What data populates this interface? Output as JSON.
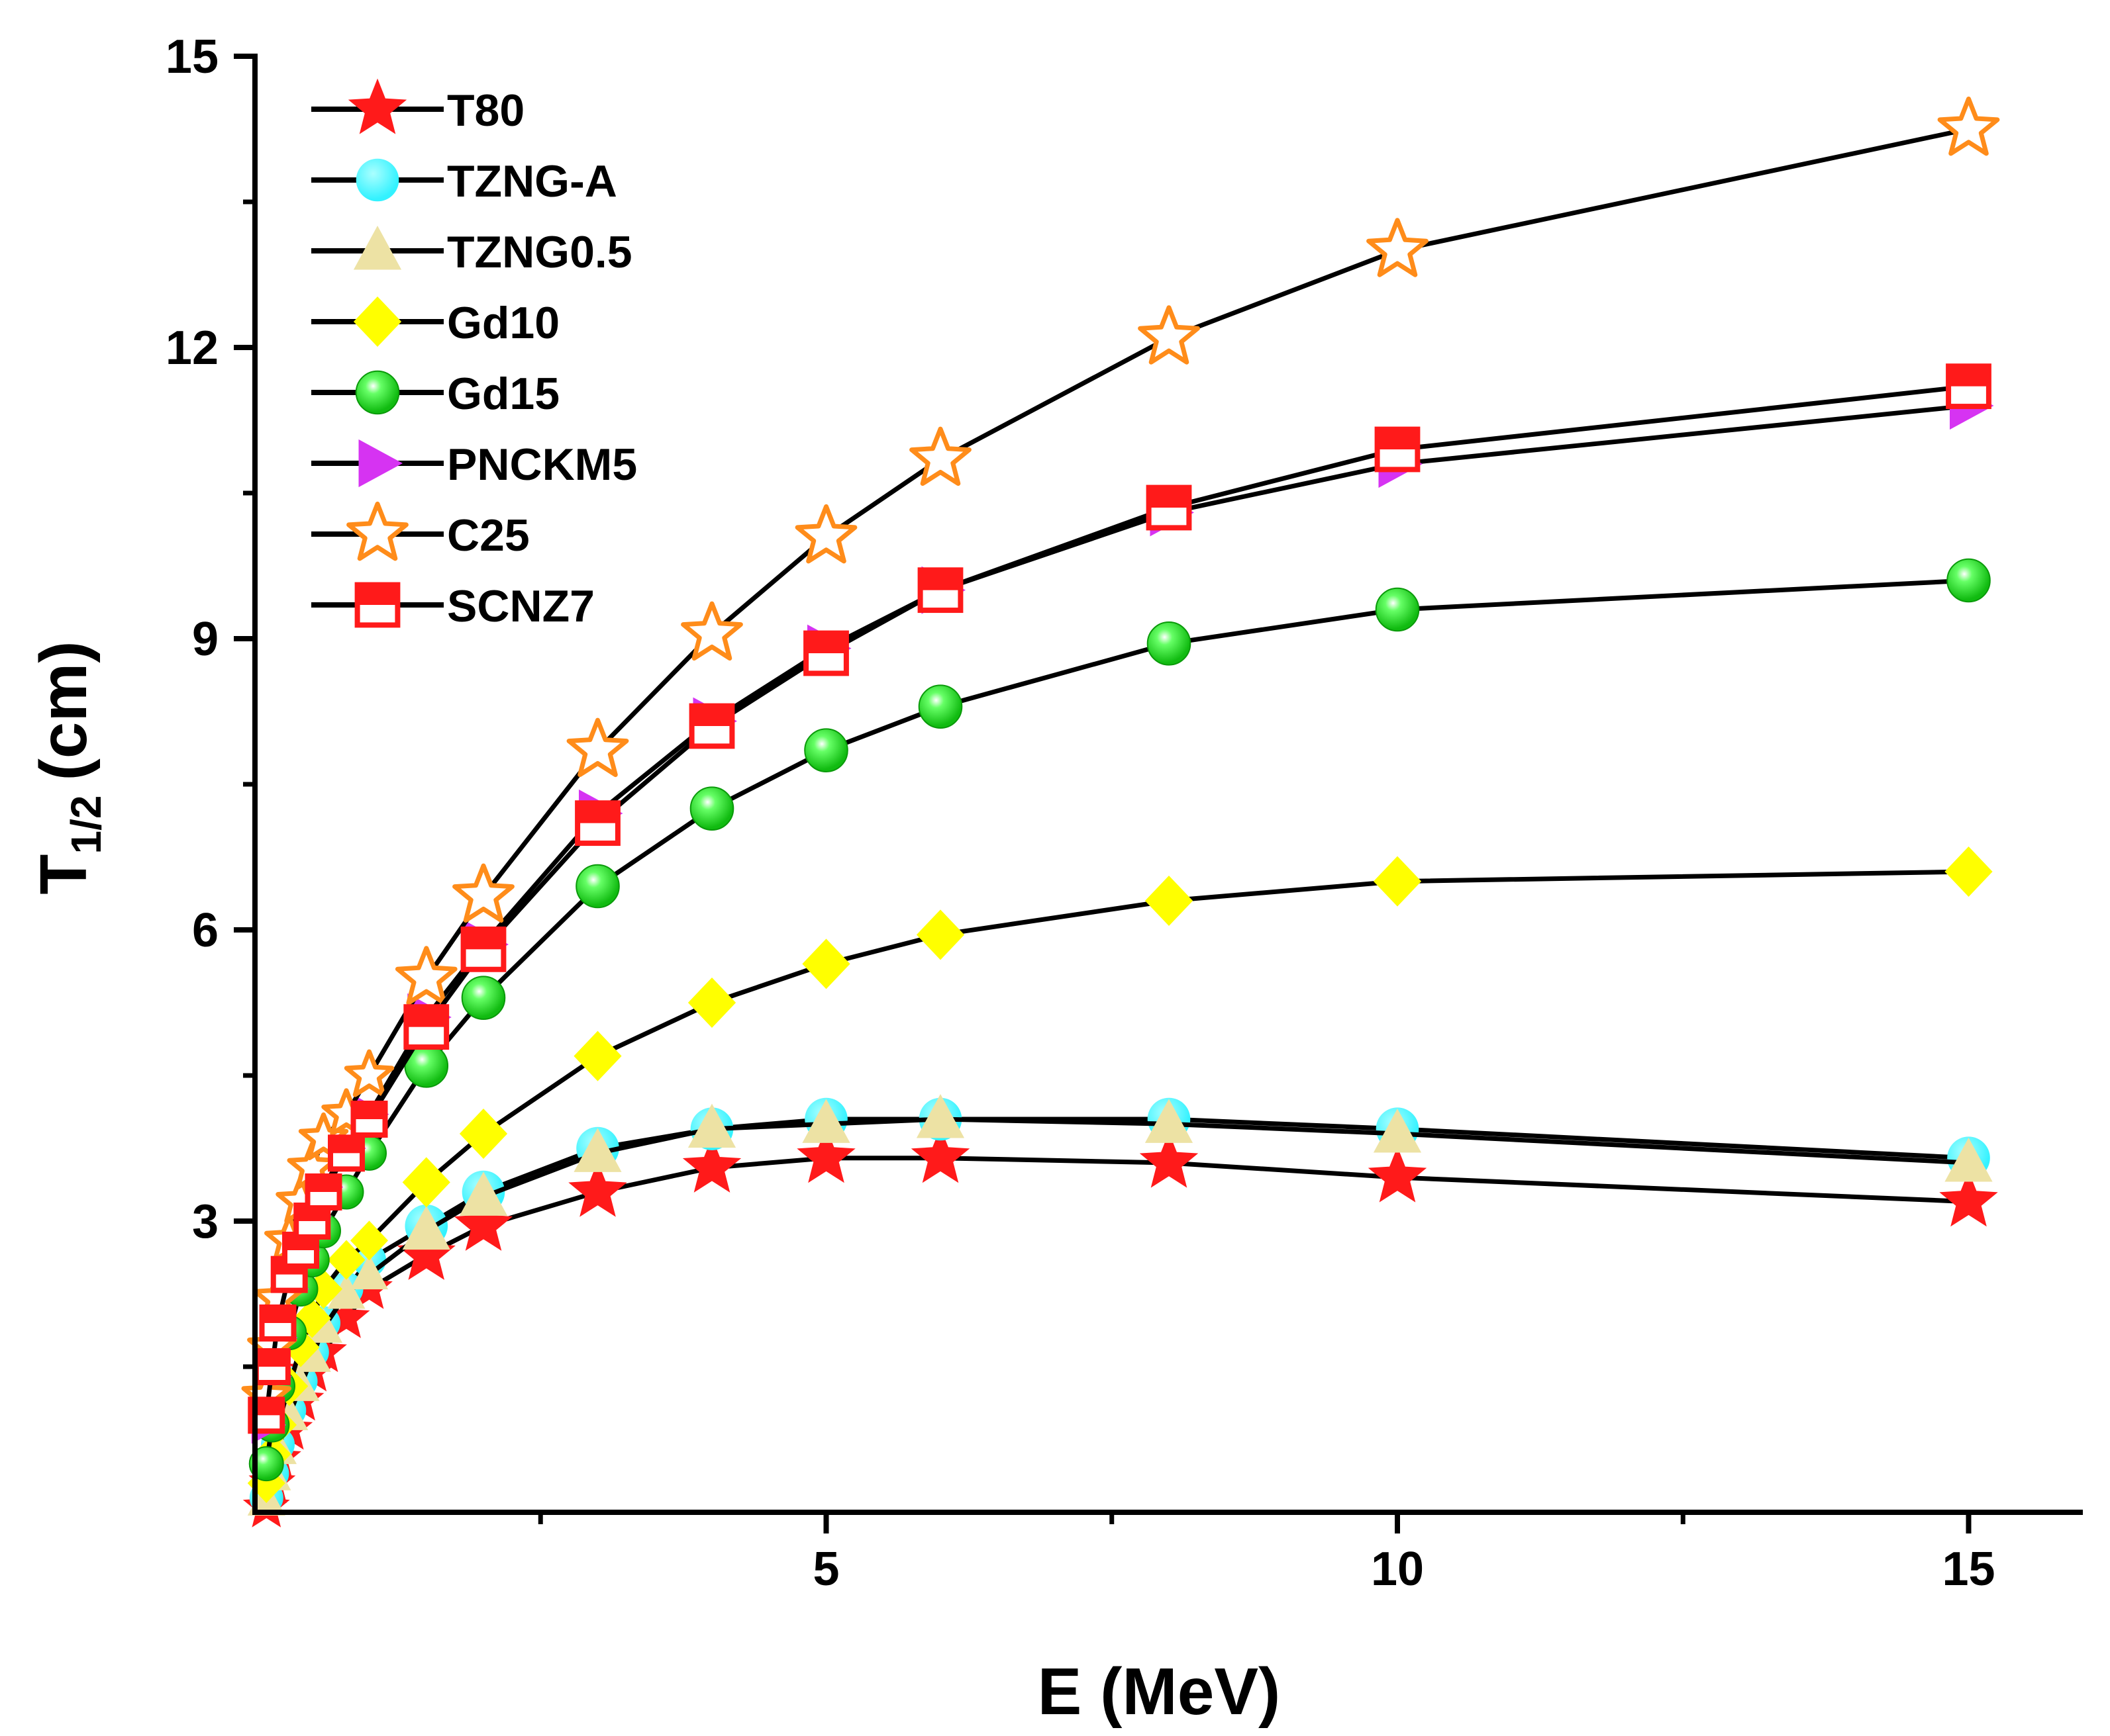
{
  "chart_data": {
    "type": "line",
    "title": "",
    "xlabel": "E (MeV)",
    "ylabel_main": "T",
    "ylabel_sub": "1/2",
    "ylabel_unit": "(cm)",
    "xlim": [
      0,
      16
    ],
    "ylim": [
      0,
      15
    ],
    "xticks": [
      5,
      10,
      15
    ],
    "xtick_labels": [
      "5",
      "10",
      "15"
    ],
    "yticks": [
      3,
      6,
      9,
      12,
      15
    ],
    "ytick_labels": [
      "3",
      "6",
      "9",
      "12",
      "15"
    ],
    "legend_position": "top-left",
    "x": [
      0.1,
      0.15,
      0.2,
      0.3,
      0.4,
      0.5,
      0.6,
      0.8,
      1,
      1.5,
      2,
      3,
      4,
      5,
      6,
      8,
      10,
      15
    ],
    "series": [
      {
        "name": "T80",
        "marker": "star",
        "color": "#ff1a1a",
        "values": [
          0.05,
          0.3,
          0.55,
          0.85,
          1.15,
          1.45,
          1.65,
          2.0,
          2.3,
          2.65,
          2.95,
          3.3,
          3.55,
          3.65,
          3.65,
          3.6,
          3.45,
          3.2
        ]
      },
      {
        "name": "TZNG-A",
        "marker": "circle",
        "color": "#33f2ff",
        "values": [
          0.15,
          0.4,
          0.7,
          1.05,
          1.35,
          1.65,
          1.95,
          2.3,
          2.6,
          2.95,
          3.3,
          3.75,
          3.95,
          4.05,
          4.05,
          4.05,
          3.95,
          3.65
        ]
      },
      {
        "name": "TZNG0.5",
        "marker": "triangle",
        "color": "#ede2a4",
        "values": [
          0.12,
          0.38,
          0.65,
          1.0,
          1.3,
          1.6,
          1.9,
          2.25,
          2.45,
          2.9,
          3.25,
          3.7,
          3.95,
          4.0,
          4.05,
          4.0,
          3.9,
          3.6
        ]
      },
      {
        "name": "Gd10",
        "marker": "diamond",
        "color": "#ffff00",
        "values": [
          0.3,
          0.6,
          0.9,
          1.3,
          1.7,
          2.0,
          2.3,
          2.6,
          2.8,
          3.4,
          3.9,
          4.7,
          5.25,
          5.65,
          5.95,
          6.3,
          6.5,
          6.6
        ]
      },
      {
        "name": "Gd15",
        "marker": "sphere",
        "color": "#22dd22",
        "values": [
          0.5,
          0.9,
          1.3,
          1.85,
          2.3,
          2.6,
          2.9,
          3.3,
          3.7,
          4.6,
          5.3,
          6.45,
          7.25,
          7.85,
          8.3,
          8.95,
          9.3,
          9.6
        ]
      },
      {
        "name": "PNCKM5",
        "marker": "triangle-right",
        "color": "#d633f2",
        "values": [
          0.9,
          1.4,
          1.8,
          2.3,
          2.7,
          3.05,
          3.35,
          3.75,
          4.1,
          5.1,
          5.85,
          7.2,
          8.15,
          8.9,
          9.5,
          10.3,
          10.8,
          11.4
        ]
      },
      {
        "name": "C25",
        "marker": "star-open",
        "color": "#ff8c1a",
        "values": [
          1.2,
          1.7,
          2.2,
          2.8,
          3.2,
          3.55,
          3.85,
          4.1,
          4.5,
          5.5,
          6.35,
          7.85,
          9.05,
          10.05,
          10.85,
          12.1,
          13.0,
          14.25
        ]
      },
      {
        "name": "SCNZ7",
        "marker": "square-half",
        "color": "#ff1a1a",
        "values": [
          1.0,
          1.5,
          1.95,
          2.45,
          2.7,
          3.0,
          3.3,
          3.7,
          4.05,
          5.0,
          5.8,
          7.1,
          8.1,
          8.85,
          9.5,
          10.35,
          10.95,
          11.6
        ]
      }
    ]
  }
}
